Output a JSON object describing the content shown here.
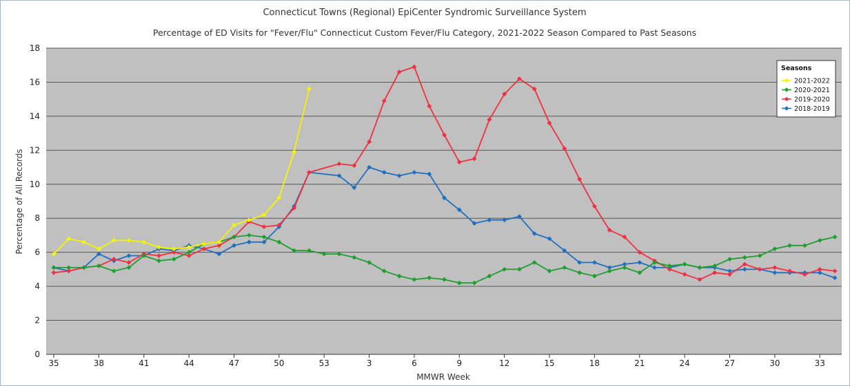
{
  "chart_data": {
    "type": "line",
    "title": "Connecticut Towns (Regional) EpiCenter Syndromic Surveillance System",
    "subtitle": "Percentage of ED Visits for \"Fever/Flu\" Connecticut Custom Fever/Flu Category, 2021-2022 Season Compared to Past Seasons",
    "xlabel": "MMWR Week",
    "ylabel": "Percentage of All Records",
    "ylim": [
      0,
      18
    ],
    "y_ticks": [
      "0",
      "2",
      "4",
      "6",
      "8",
      "10",
      "12",
      "14",
      "16",
      "18"
    ],
    "x_tick_labels": [
      "35",
      "38",
      "41",
      "44",
      "47",
      "50",
      "53",
      "3",
      "6",
      "9",
      "12",
      "15",
      "18",
      "21",
      "24",
      "27",
      "30",
      "33"
    ],
    "x_tick_index_step": 3,
    "num_weeks": 53,
    "grid": true,
    "legend_title": "Seasons",
    "legend_position": "top-right",
    "plot_background": "#c0c0c0",
    "series": [
      {
        "name": "2021-2022",
        "color": "#f5f500",
        "values": [
          5.9,
          6.8,
          6.6,
          6.2,
          6.7,
          6.7,
          6.6,
          6.3,
          6.2,
          6.3,
          6.5,
          6.6,
          7.6,
          7.9,
          8.2,
          9.2,
          11.9,
          15.6
        ]
      },
      {
        "name": "2020-2021",
        "color": "#1e9e2e",
        "values": [
          5.1,
          5.1,
          5.1,
          5.2,
          4.9,
          5.1,
          5.8,
          5.5,
          5.6,
          6.0,
          6.5,
          6.6,
          6.9,
          7.0,
          6.9,
          6.6,
          6.1,
          6.1,
          5.9,
          5.9,
          5.7,
          5.4,
          4.9,
          4.6,
          4.4,
          4.5,
          4.4,
          4.2,
          4.2,
          4.6,
          5.0,
          5.0,
          5.4,
          4.9,
          5.1,
          4.8,
          4.6,
          4.9,
          5.1,
          4.8,
          5.4,
          5.2,
          5.3,
          5.1,
          5.2,
          5.6,
          5.7,
          5.8,
          6.2,
          6.4,
          6.4,
          6.7,
          6.9
        ]
      },
      {
        "name": "2019-2020",
        "color": "#f03040",
        "values": [
          4.8,
          4.9,
          5.1,
          5.2,
          5.6,
          5.4,
          5.9,
          5.8,
          6.0,
          5.8,
          6.2,
          6.4,
          6.9,
          7.8,
          7.5,
          7.6,
          8.6,
          10.7,
          null,
          11.2,
          11.1,
          12.5,
          14.9,
          16.6,
          16.9,
          14.6,
          12.9,
          11.3,
          11.5,
          13.8,
          15.3,
          16.2,
          15.6,
          13.6,
          12.1,
          10.3,
          8.7,
          7.3,
          6.9,
          6.0,
          5.5,
          5.0,
          4.7,
          4.4,
          4.8,
          4.7,
          5.3,
          5.0,
          5.1,
          4.9,
          4.7,
          5.0,
          4.9
        ]
      },
      {
        "name": "2018-2019",
        "color": "#1f6fc0",
        "values": [
          5.1,
          4.9,
          5.1,
          5.9,
          5.5,
          5.8,
          5.8,
          6.2,
          6.1,
          6.4,
          6.2,
          5.9,
          6.4,
          6.6,
          6.6,
          7.5,
          8.7,
          10.7,
          null,
          10.5,
          9.8,
          11.0,
          10.7,
          10.5,
          10.7,
          10.6,
          9.2,
          8.5,
          7.7,
          7.9,
          7.9,
          8.1,
          7.1,
          6.8,
          6.1,
          5.4,
          5.4,
          5.1,
          5.3,
          5.4,
          5.1,
          5.1,
          5.3,
          5.1,
          5.1,
          4.9,
          5.0,
          5.0,
          4.8,
          4.8,
          4.8,
          4.8,
          4.5
        ]
      }
    ]
  }
}
